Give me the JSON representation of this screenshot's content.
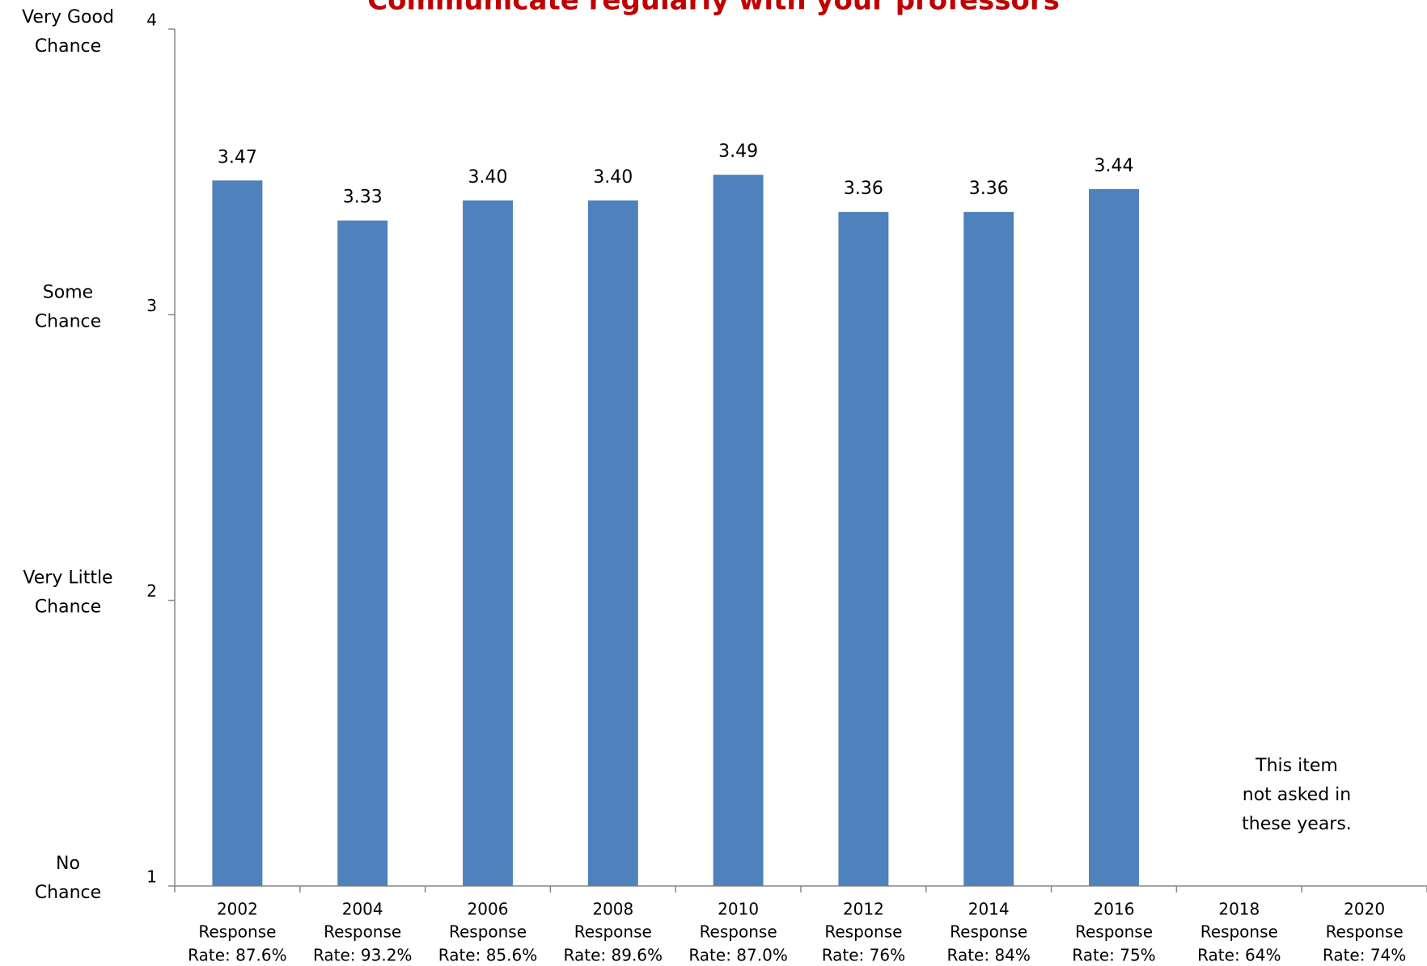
{
  "chart_data": {
    "type": "bar",
    "title": "Communicate regularly with your professors",
    "categories": [
      "2002",
      "2004",
      "2006",
      "2008",
      "2010",
      "2012",
      "2014",
      "2016",
      "2018",
      "2020"
    ],
    "category_notes": [
      [
        "Response",
        "Rate: 87.6%"
      ],
      [
        "Response",
        "Rate: 93.2%"
      ],
      [
        "Response",
        "Rate: 85.6%"
      ],
      [
        "Response",
        "Rate: 89.6%"
      ],
      [
        "Response",
        "Rate: 87.0%"
      ],
      [
        "Response",
        "Rate: 76%"
      ],
      [
        "Response",
        "Rate: 84%"
      ],
      [
        "Response",
        "Rate: 75%"
      ],
      [
        "Response",
        "Rate: 64%"
      ],
      [
        "Response",
        "Rate: 74%"
      ]
    ],
    "values": [
      3.47,
      3.33,
      3.4,
      3.4,
      3.49,
      3.36,
      3.36,
      3.44,
      null,
      null
    ],
    "value_labels": [
      "3.47",
      "3.33",
      "3.40",
      "3.40",
      "3.49",
      "3.36",
      "3.36",
      "3.44",
      null,
      null
    ],
    "color": "#4f81bd",
    "ylim": [
      1,
      4
    ],
    "yticks": [
      1,
      2,
      3,
      4
    ],
    "y_level_labels": [
      {
        "value": 4,
        "lines": [
          "Very Good",
          "Chance"
        ]
      },
      {
        "value": 3,
        "lines": [
          "Some",
          "Chance"
        ]
      },
      {
        "value": 2,
        "lines": [
          "Very Little",
          "Chance"
        ]
      },
      {
        "value": 1,
        "lines": [
          "No",
          "Chance"
        ]
      }
    ],
    "annotation": [
      "This item",
      "not asked in",
      "these years."
    ],
    "grid": false
  }
}
